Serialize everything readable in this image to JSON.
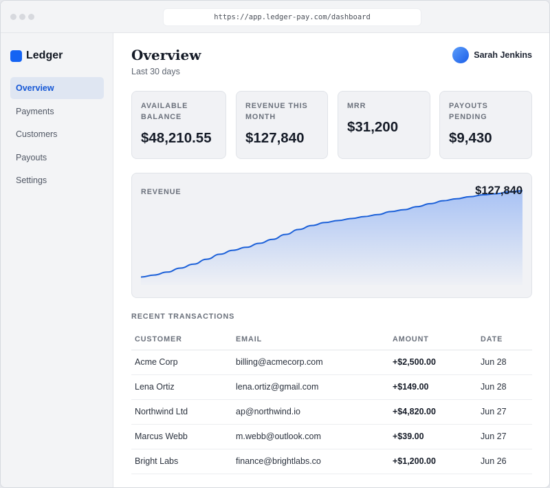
{
  "browser": {
    "url": "https://app.ledger-pay.com/dashboard"
  },
  "sidebar": {
    "brand": "Ledger",
    "items": [
      {
        "label": "Overview",
        "active": true
      },
      {
        "label": "Payments",
        "active": false
      },
      {
        "label": "Customers",
        "active": false
      },
      {
        "label": "Payouts",
        "active": false
      },
      {
        "label": "Settings",
        "active": false
      }
    ]
  },
  "header": {
    "title": "Overview",
    "subtitle": "Last 30 days",
    "user_name": "Sarah Jenkins"
  },
  "stats": [
    {
      "label": "Available Balance",
      "value": "$48,210.55"
    },
    {
      "label": "Revenue This Month",
      "value": "$127,840"
    },
    {
      "label": "MRR",
      "value": "$31,200"
    },
    {
      "label": "Payouts Pending",
      "value": "$9,430"
    }
  ],
  "revenue": {
    "label": "REVENUE",
    "total": "$127,840"
  },
  "chart_data": {
    "type": "area",
    "x": [
      0,
      1,
      2,
      3,
      4,
      5,
      6,
      7,
      8,
      9,
      10,
      11,
      12,
      13,
      14,
      15,
      16,
      17,
      18,
      19,
      20,
      21,
      22,
      23,
      24,
      25,
      26,
      27,
      28,
      29
    ],
    "series": [
      {
        "values": [
          8,
          10,
          13,
          17,
          21,
          26,
          31,
          35,
          38,
          42,
          46,
          51,
          56,
          60,
          63,
          65,
          67,
          69,
          71,
          74,
          76,
          79,
          82,
          85,
          87,
          89,
          91,
          92,
          94,
          95
        ]
      }
    ],
    "ylim": [
      0,
      100
    ],
    "grid": false,
    "colors": {
      "line": "#1a5fd8",
      "fill": "#6d9bf2"
    }
  },
  "transactions": {
    "title": "RECENT TRANSACTIONS",
    "columns": [
      "CUSTOMER",
      "EMAIL",
      "AMOUNT",
      "DATE"
    ],
    "rows": [
      {
        "customer": "Acme Corp",
        "email": "billing@acmecorp.com",
        "amount": "+$2,500.00",
        "date": "Jun 28"
      },
      {
        "customer": "Lena Ortiz",
        "email": "lena.ortiz@gmail.com",
        "amount": "+$149.00",
        "date": "Jun 28"
      },
      {
        "customer": "Northwind Ltd",
        "email": "ap@northwind.io",
        "amount": "+$4,820.00",
        "date": "Jun 27"
      },
      {
        "customer": "Marcus Webb",
        "email": "m.webb@outlook.com",
        "amount": "+$39.00",
        "date": "Jun 27"
      },
      {
        "customer": "Bright Labs",
        "email": "finance@brightlabs.co",
        "amount": "+$1,200.00",
        "date": "Jun 26"
      }
    ]
  },
  "colors": {
    "accent": "#1463f3",
    "nav_active_bg": "#dfe6f2",
    "nav_active_text": "#1557d6"
  }
}
